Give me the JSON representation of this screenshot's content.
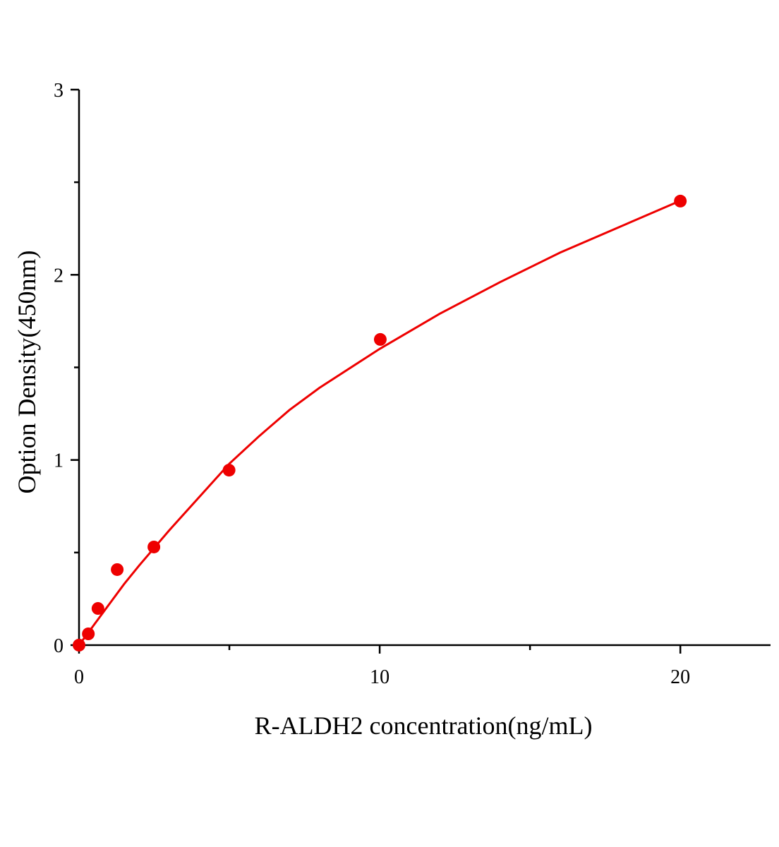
{
  "chart_data": {
    "type": "scatter",
    "x_label": "R-ALDH2 concentration(ng/mL)",
    "y_label": "Option Density(450nm)",
    "x": [
      0,
      0.31,
      0.63,
      1.27,
      2.49,
      4.99,
      10.02,
      20
    ],
    "values": [
      0,
      0.061,
      0.198,
      0.408,
      0.53,
      0.945,
      1.651,
      2.398
    ],
    "color": "#ee0000",
    "fit": {
      "x": [
        0,
        0.5,
        1,
        1.5,
        2,
        3,
        4,
        5,
        6,
        7,
        8,
        10,
        12,
        14,
        16,
        18,
        20
      ],
      "values": [
        0,
        0.11,
        0.22,
        0.33,
        0.43,
        0.62,
        0.8,
        0.98,
        1.13,
        1.27,
        1.39,
        1.6,
        1.79,
        1.96,
        2.12,
        2.26,
        2.4
      ],
      "color": "#ee0000"
    },
    "xlim": [
      0,
      23
    ],
    "ylim": [
      0,
      3
    ],
    "xticks": [
      0,
      10,
      20
    ],
    "yticks": [
      0,
      1,
      2,
      3
    ],
    "xticks_minor": [
      5,
      15
    ],
    "yticks_minor": [
      0.5,
      1.5,
      2.5
    ],
    "grid": false
  }
}
